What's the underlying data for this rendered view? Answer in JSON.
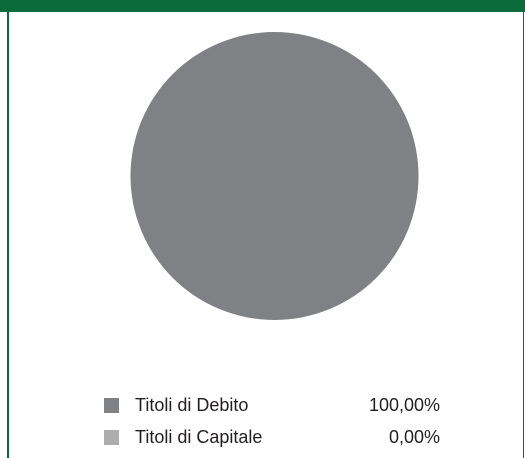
{
  "colors": {
    "accent": "#0b6b3a",
    "background": "#ffffff",
    "text": "#231f20"
  },
  "chart_data": {
    "type": "pie",
    "title": "",
    "categories": [
      "Titoli di Debito",
      "Titoli di Capitale"
    ],
    "values": [
      100,
      0
    ],
    "value_labels": [
      "100,00%",
      "0,00%"
    ],
    "colors": [
      "#808184",
      "#adadad"
    ],
    "legend_placement": "bottom"
  }
}
